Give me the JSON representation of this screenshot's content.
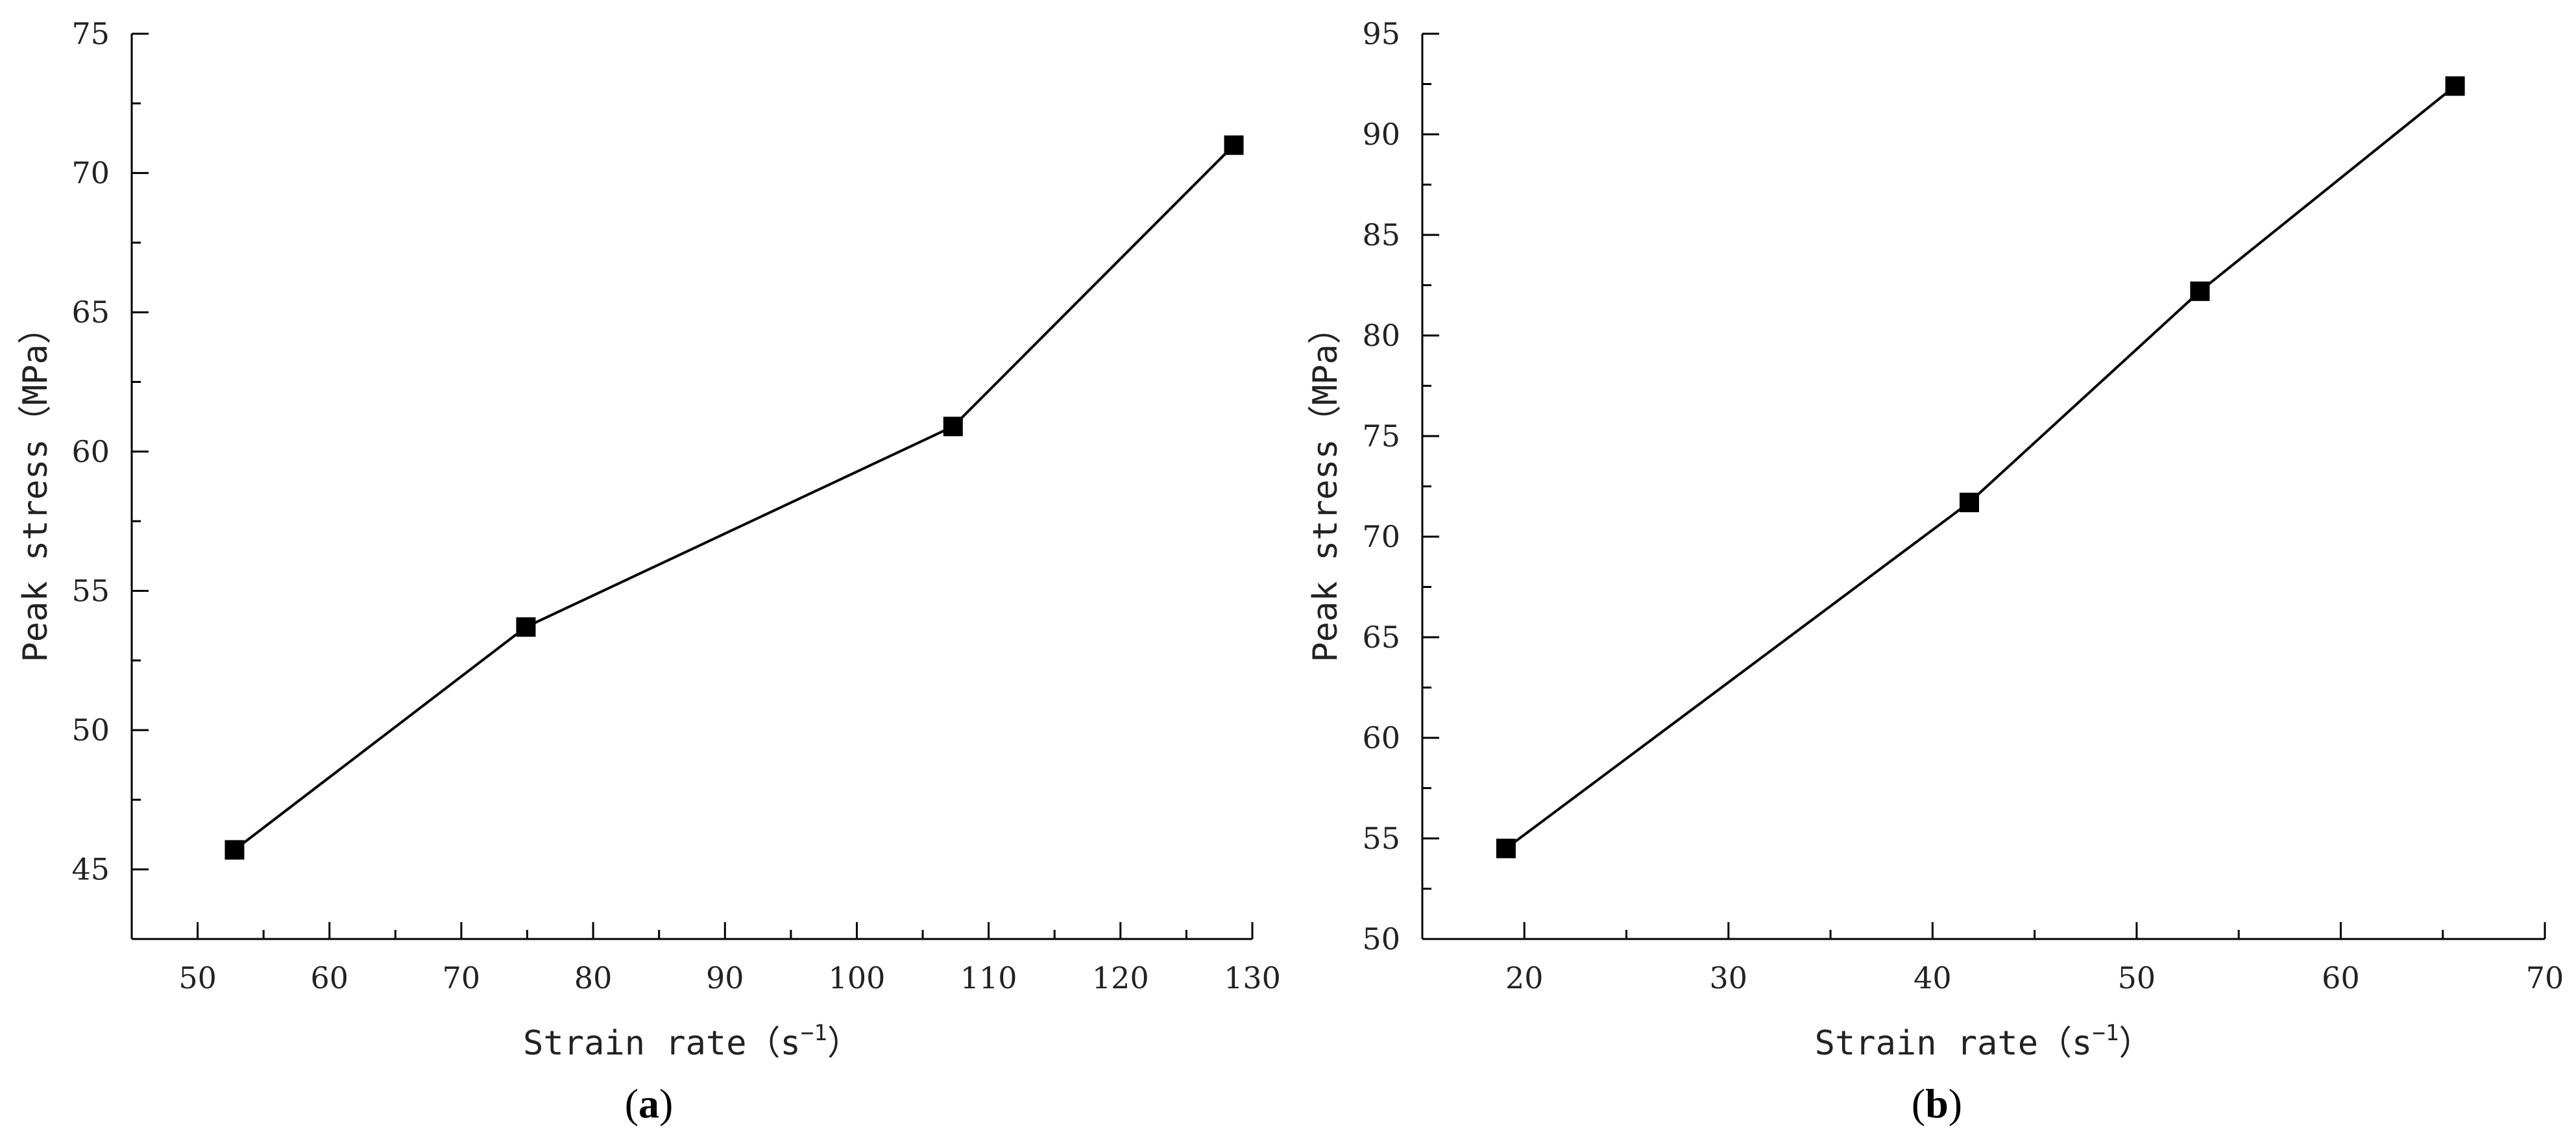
{
  "chart_data": [
    {
      "type": "line",
      "panel_label": "a",
      "xlabel": "Strain rate",
      "xlabel_unit_base": "s",
      "xlabel_unit_sup": "−1",
      "ylabel": "Peak stress（MPa）",
      "xlim": [
        45,
        130
      ],
      "ylim": [
        42.5,
        75
      ],
      "xticks": [
        50,
        60,
        70,
        80,
        90,
        100,
        110,
        120,
        130
      ],
      "yticks": [
        45,
        50,
        55,
        60,
        65,
        70,
        75
      ],
      "grid": false,
      "marker": "square",
      "color": "#000000",
      "series": [
        {
          "x": [
            52.8,
            74.9,
            107.3,
            128.6
          ],
          "y": [
            45.7,
            53.7,
            60.9,
            71.0
          ]
        }
      ]
    },
    {
      "type": "line",
      "panel_label": "b",
      "xlabel": "Strain rate",
      "xlabel_unit_base": "s",
      "xlabel_unit_sup": "−1",
      "ylabel": "Peak stress（MPa）",
      "xlim": [
        15,
        70
      ],
      "ylim": [
        50,
        95
      ],
      "xticks": [
        20,
        30,
        40,
        50,
        60,
        70
      ],
      "yticks": [
        50,
        55,
        60,
        65,
        70,
        75,
        80,
        85,
        90,
        95
      ],
      "grid": false,
      "marker": "square",
      "color": "#000000",
      "series": [
        {
          "x": [
            19.1,
            41.8,
            53.1,
            65.6
          ],
          "y": [
            54.5,
            71.7,
            82.2,
            92.4
          ]
        }
      ]
    }
  ]
}
